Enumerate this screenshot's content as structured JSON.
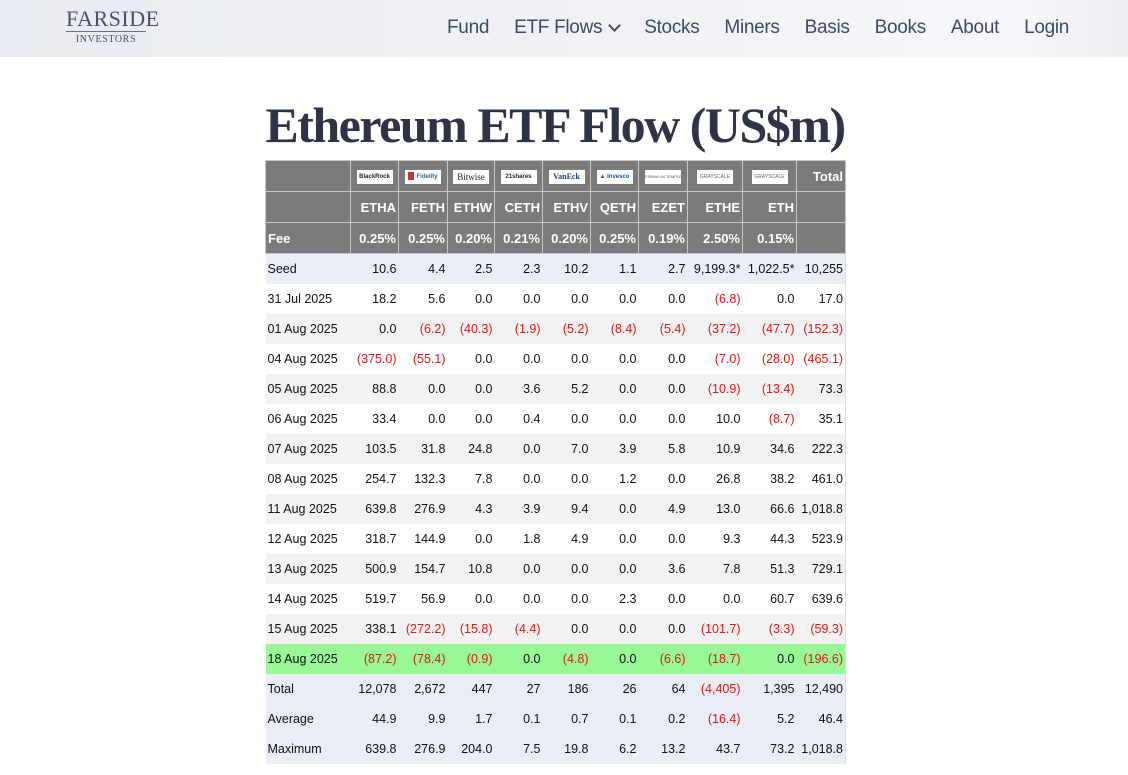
{
  "header": {
    "logo": {
      "main": "FARSIDE",
      "sub": "INVESTORS"
    },
    "nav": [
      {
        "label": "Fund"
      },
      {
        "label": "ETF Flows",
        "has_dropdown": true
      },
      {
        "label": "Stocks"
      },
      {
        "label": "Miners"
      },
      {
        "label": "Basis"
      },
      {
        "label": "Books"
      },
      {
        "label": "About"
      },
      {
        "label": "Login"
      }
    ]
  },
  "page": {
    "title": "Ethereum ETF Flow (US$m)"
  },
  "table": {
    "issuers": [
      "BlackRock",
      "Fidelity",
      "Bitwise",
      "21shares",
      "VanEck",
      "Invesco",
      "Franklin Templeton",
      "Grayscale",
      "Grayscale"
    ],
    "total_label": "Total",
    "tickers": [
      "ETHA",
      "FETH",
      "ETHW",
      "CETH",
      "ETHV",
      "QETH",
      "EZET",
      "ETHE",
      "ETH"
    ],
    "fee_label": "Fee",
    "fees": [
      "0.25%",
      "0.25%",
      "0.20%",
      "0.21%",
      "0.20%",
      "0.25%",
      "0.19%",
      "2.50%",
      "0.15%",
      ""
    ],
    "rows": [
      {
        "label": "Seed",
        "style": "seed",
        "values": [
          "10.6",
          "4.4",
          "2.5",
          "2.3",
          "10.2",
          "1.1",
          "2.7",
          "9,199.3*",
          "1,022.5*",
          "10,255"
        ]
      },
      {
        "label": "31 Jul 2025",
        "style": "w",
        "values": [
          "18.2",
          "5.6",
          "0.0",
          "0.0",
          "0.0",
          "0.0",
          "0.0",
          "(6.8)",
          "0.0",
          "17.0"
        ]
      },
      {
        "label": "01 Aug 2025",
        "style": "g",
        "values": [
          "0.0",
          "(6.2)",
          "(40.3)",
          "(1.9)",
          "(5.2)",
          "(8.4)",
          "(5.4)",
          "(37.2)",
          "(47.7)",
          "(152.3)"
        ]
      },
      {
        "label": "04 Aug 2025",
        "style": "w",
        "values": [
          "(375.0)",
          "(55.1)",
          "0.0",
          "0.0",
          "0.0",
          "0.0",
          "0.0",
          "(7.0)",
          "(28.0)",
          "(465.1)"
        ]
      },
      {
        "label": "05 Aug 2025",
        "style": "g",
        "values": [
          "88.8",
          "0.0",
          "0.0",
          "3.6",
          "5.2",
          "0.0",
          "0.0",
          "(10.9)",
          "(13.4)",
          "73.3"
        ]
      },
      {
        "label": "06 Aug 2025",
        "style": "w",
        "values": [
          "33.4",
          "0.0",
          "0.0",
          "0.4",
          "0.0",
          "0.0",
          "0.0",
          "10.0",
          "(8.7)",
          "35.1"
        ]
      },
      {
        "label": "07 Aug 2025",
        "style": "g",
        "values": [
          "103.5",
          "31.8",
          "24.8",
          "0.0",
          "7.0",
          "3.9",
          "5.8",
          "10.9",
          "34.6",
          "222.3"
        ]
      },
      {
        "label": "08 Aug 2025",
        "style": "w",
        "values": [
          "254.7",
          "132.3",
          "7.8",
          "0.0",
          "0.0",
          "1.2",
          "0.0",
          "26.8",
          "38.2",
          "461.0"
        ]
      },
      {
        "label": "11 Aug 2025",
        "style": "g",
        "values": [
          "639.8",
          "276.9",
          "4.3",
          "3.9",
          "9.4",
          "0.0",
          "4.9",
          "13.0",
          "66.6",
          "1,018.8"
        ]
      },
      {
        "label": "12 Aug 2025",
        "style": "w",
        "values": [
          "318.7",
          "144.9",
          "0.0",
          "1.8",
          "4.9",
          "0.0",
          "0.0",
          "9.3",
          "44.3",
          "523.9"
        ]
      },
      {
        "label": "13 Aug 2025",
        "style": "g",
        "values": [
          "500.9",
          "154.7",
          "10.8",
          "0.0",
          "0.0",
          "0.0",
          "3.6",
          "7.8",
          "51.3",
          "729.1"
        ]
      },
      {
        "label": "14 Aug 2025",
        "style": "w",
        "values": [
          "519.7",
          "56.9",
          "0.0",
          "0.0",
          "0.0",
          "2.3",
          "0.0",
          "0.0",
          "60.7",
          "639.6"
        ]
      },
      {
        "label": "15 Aug 2025",
        "style": "g",
        "values": [
          "338.1",
          "(272.2)",
          "(15.8)",
          "(4.4)",
          "0.0",
          "0.0",
          "0.0",
          "(101.7)",
          "(3.3)",
          "(59.3)"
        ]
      },
      {
        "label": "18 Aug 2025",
        "style": "hl",
        "values": [
          "(87.2)",
          "(78.4)",
          "(0.9)",
          "0.0",
          "(4.8)",
          "0.0",
          "(6.6)",
          "(18.7)",
          "0.0",
          "(196.6)"
        ]
      },
      {
        "label": "Total",
        "style": "sum",
        "values": [
          "12,078",
          "2,672",
          "447",
          "27",
          "186",
          "26",
          "64",
          "(4,405)",
          "1,395",
          "12,490"
        ]
      },
      {
        "label": "Average",
        "style": "sum",
        "values": [
          "44.9",
          "9.9",
          "1.7",
          "0.1",
          "0.7",
          "0.1",
          "0.2",
          "(16.4)",
          "5.2",
          "46.4"
        ]
      },
      {
        "label": "Maximum",
        "style": "sum",
        "values": [
          "639.8",
          "276.9",
          "204.0",
          "7.5",
          "19.8",
          "6.2",
          "13.2",
          "43.7",
          "73.2",
          "1,018.8"
        ]
      }
    ]
  },
  "colors": {
    "header_bg": "#7b7b7b",
    "negative": "#ee1111",
    "highlight_row": "#98f898",
    "seed_summary_bg": "#e8edf6"
  }
}
